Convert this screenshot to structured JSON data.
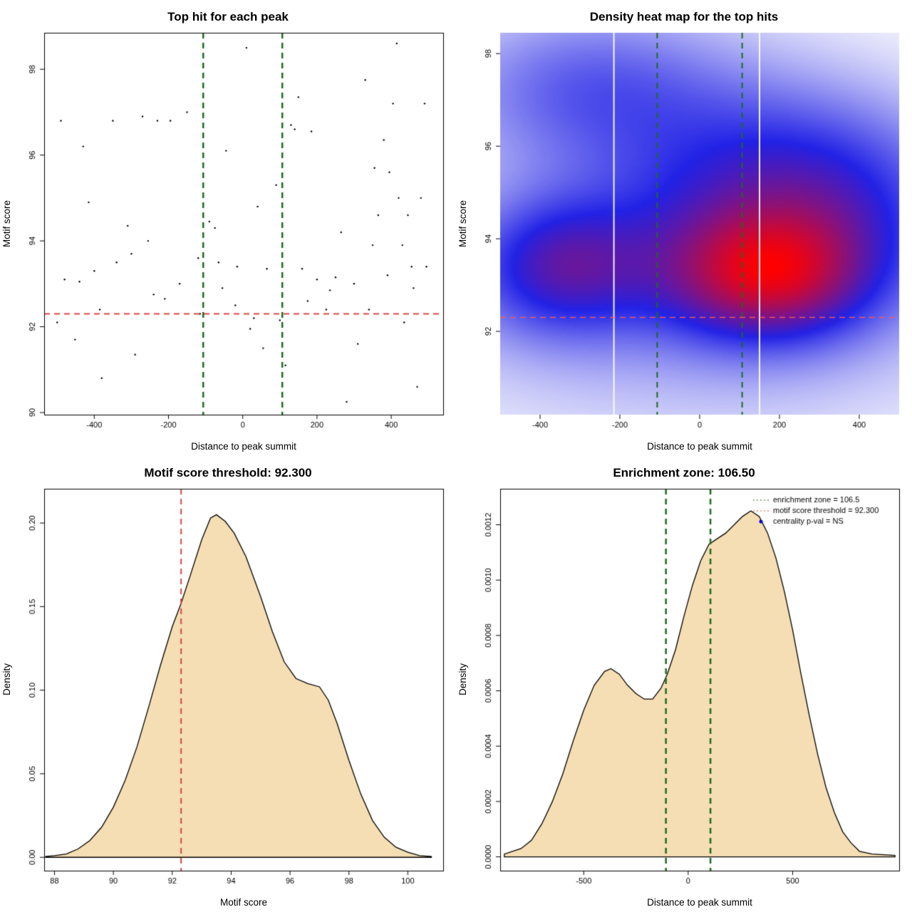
{
  "page": {
    "background": "#ffffff"
  },
  "colors": {
    "threshold_red": "#d94545",
    "zone_green": "#1e6b1e",
    "area_fill_wheat": "#f5deb3",
    "heat_high": "#ff0000",
    "heat_mid": "#2222e6",
    "legend_blue": "#0000cd"
  },
  "chart_data": [
    {
      "id": "scatter",
      "type": "scatter",
      "title": "Top hit for each peak",
      "xlabel": "Distance to peak summit",
      "ylabel": "Motif score",
      "xlim": [
        -535,
        540
      ],
      "ylim": [
        89.95,
        98.85
      ],
      "xticks": [
        -400,
        -200,
        0,
        200,
        400
      ],
      "xtick_labels": [
        "-400",
        "-200",
        "0",
        "200",
        "400"
      ],
      "yticks": [
        90,
        92,
        94,
        96,
        98
      ],
      "ytick_labels": [
        "90",
        "92",
        "94",
        "96",
        "98"
      ],
      "point_color": "#000000",
      "points": [
        [
          -490,
          96.8
        ],
        [
          -452,
          91.7
        ],
        [
          -440,
          93.05
        ],
        [
          -430,
          96.2
        ],
        [
          -480,
          93.1
        ],
        [
          -500,
          92.1
        ],
        [
          -415,
          94.9
        ],
        [
          -400,
          93.3
        ],
        [
          -385,
          92.4
        ],
        [
          -380,
          90.8
        ],
        [
          -350,
          96.8
        ],
        [
          -340,
          93.5
        ],
        [
          -310,
          94.35
        ],
        [
          -300,
          93.7
        ],
        [
          -290,
          91.35
        ],
        [
          -270,
          96.9
        ],
        [
          -255,
          94.0
        ],
        [
          -240,
          92.75
        ],
        [
          -230,
          96.8
        ],
        [
          -210,
          92.65
        ],
        [
          -195,
          96.8
        ],
        [
          -170,
          93.0
        ],
        [
          -150,
          97.0
        ],
        [
          -120,
          93.6
        ],
        [
          -115,
          92.3
        ],
        [
          -90,
          94.45
        ],
        [
          -75,
          94.3
        ],
        [
          -65,
          93.5
        ],
        [
          -55,
          92.9
        ],
        [
          -45,
          96.1
        ],
        [
          -20,
          92.5
        ],
        [
          -15,
          93.4
        ],
        [
          10,
          98.5
        ],
        [
          20,
          91.95
        ],
        [
          30,
          92.2
        ],
        [
          40,
          94.8
        ],
        [
          55,
          91.5
        ],
        [
          65,
          93.35
        ],
        [
          90,
          95.3
        ],
        [
          100,
          92.15
        ],
        [
          115,
          91.1
        ],
        [
          130,
          96.7
        ],
        [
          140,
          96.6
        ],
        [
          150,
          97.35
        ],
        [
          160,
          93.35
        ],
        [
          175,
          92.6
        ],
        [
          185,
          96.55
        ],
        [
          200,
          93.1
        ],
        [
          225,
          92.4
        ],
        [
          235,
          92.85
        ],
        [
          250,
          93.15
        ],
        [
          265,
          94.2
        ],
        [
          280,
          90.25
        ],
        [
          300,
          93.0
        ],
        [
          310,
          91.6
        ],
        [
          330,
          97.75
        ],
        [
          340,
          92.4
        ],
        [
          350,
          93.9
        ],
        [
          355,
          95.7
        ],
        [
          365,
          94.6
        ],
        [
          380,
          96.35
        ],
        [
          390,
          93.2
        ],
        [
          395,
          95.6
        ],
        [
          405,
          97.2
        ],
        [
          415,
          98.6
        ],
        [
          420,
          95.0
        ],
        [
          430,
          93.9
        ],
        [
          435,
          92.1
        ],
        [
          445,
          94.6
        ],
        [
          455,
          93.4
        ],
        [
          460,
          92.9
        ],
        [
          470,
          90.6
        ],
        [
          480,
          95.0
        ],
        [
          490,
          97.2
        ],
        [
          495,
          93.4
        ]
      ],
      "hline": {
        "value": 92.3,
        "color": "#d94545",
        "width": 2
      },
      "vlines": {
        "values": [
          -106.5,
          106.5
        ],
        "color": "#1e6b1e",
        "width": 2.5
      },
      "box": true
    },
    {
      "id": "heatmap",
      "type": "heatmap",
      "title": "Density heat map for the top hits",
      "xlabel": "Distance to peak summit",
      "ylabel": "Motif score",
      "xlim": [
        -500,
        500
      ],
      "ylim": [
        90.2,
        98.45
      ],
      "xticks": [
        -400,
        -200,
        0,
        200,
        400
      ],
      "xtick_labels": [
        "-400",
        "-200",
        "0",
        "200",
        "400"
      ],
      "yticks": [
        92,
        94,
        96,
        98
      ],
      "ytick_labels": [
        "92",
        "94",
        "96",
        "98"
      ],
      "colormap": {
        "low": "#ffffff",
        "mid": "#2222e6",
        "high": "#ff0000"
      },
      "kernels": [
        {
          "x": 170,
          "y": 93.2,
          "sx": 175,
          "sy": 0.95,
          "w": 1.0
        },
        {
          "x": -345,
          "y": 93.4,
          "sx": 155,
          "sy": 1.0,
          "w": 0.62
        },
        {
          "x": -280,
          "y": 97.3,
          "sx": 240,
          "sy": 1.15,
          "w": 0.4
        },
        {
          "x": 120,
          "y": 95.4,
          "sx": 260,
          "sy": 1.5,
          "w": 0.42
        },
        {
          "x": 360,
          "y": 94.8,
          "sx": 210,
          "sy": 1.35,
          "w": 0.33
        },
        {
          "x": 0,
          "y": 93.2,
          "sx": 470,
          "sy": 2.0,
          "w": 0.32
        }
      ],
      "white_lines_x": [
        -215,
        150
      ],
      "hline": {
        "value": 92.3,
        "color": "rgba(255,90,90,0.9)",
        "width": 1.6
      },
      "vlines": {
        "values": [
          -106.5,
          106.5
        ],
        "color": "#1e6b1e",
        "width": 2
      },
      "box": false
    },
    {
      "id": "score-density",
      "type": "area",
      "title": "Motif score threshold: 92.300",
      "xlabel": "Motif score",
      "ylabel": "Density",
      "xlim": [
        87.65,
        101.2
      ],
      "ylim": [
        -0.008,
        0.2205
      ],
      "xticks": [
        88,
        90,
        92,
        94,
        96,
        98,
        100
      ],
      "xtick_labels": [
        "88",
        "90",
        "92",
        "94",
        "96",
        "98",
        "100"
      ],
      "yticks": [
        0,
        0.05,
        0.1,
        0.15,
        0.2
      ],
      "ytick_labels": [
        "0.00",
        "0.05",
        "0.10",
        "0.15",
        "0.20"
      ],
      "fill": "#f5deb3",
      "stroke": "#000000",
      "curve": [
        [
          87.7,
          0.0005
        ],
        [
          88.0,
          0.001
        ],
        [
          88.4,
          0.002
        ],
        [
          88.8,
          0.005
        ],
        [
          89.2,
          0.01
        ],
        [
          89.6,
          0.018
        ],
        [
          90.0,
          0.03
        ],
        [
          90.4,
          0.046
        ],
        [
          90.8,
          0.066
        ],
        [
          91.2,
          0.09
        ],
        [
          91.6,
          0.115
        ],
        [
          92.0,
          0.138
        ],
        [
          92.3,
          0.152
        ],
        [
          92.6,
          0.168
        ],
        [
          93.0,
          0.19
        ],
        [
          93.3,
          0.203
        ],
        [
          93.5,
          0.205
        ],
        [
          93.8,
          0.201
        ],
        [
          94.1,
          0.194
        ],
        [
          94.5,
          0.18
        ],
        [
          95.0,
          0.156
        ],
        [
          95.4,
          0.135
        ],
        [
          95.8,
          0.117
        ],
        [
          96.2,
          0.107
        ],
        [
          96.6,
          0.104
        ],
        [
          97.0,
          0.102
        ],
        [
          97.3,
          0.094
        ],
        [
          97.6,
          0.08
        ],
        [
          98.0,
          0.058
        ],
        [
          98.4,
          0.038
        ],
        [
          98.8,
          0.022
        ],
        [
          99.2,
          0.012
        ],
        [
          99.6,
          0.006
        ],
        [
          100.0,
          0.003
        ],
        [
          100.4,
          0.001
        ],
        [
          100.8,
          0.0005
        ]
      ],
      "vlines": {
        "values": [
          92.3
        ],
        "color": "#d94545",
        "width": 2
      },
      "box": true
    },
    {
      "id": "position-density",
      "type": "area",
      "title": "Enrichment zone: 106.50",
      "xlabel": "Distance to peak summit",
      "ylabel": "Density",
      "xlim": [
        -900,
        1010
      ],
      "ylim": [
        -5e-05,
        0.00133
      ],
      "xticks": [
        -500,
        0,
        500
      ],
      "xtick_labels": [
        "-500",
        "0",
        "500"
      ],
      "yticks": [
        0,
        0.0002,
        0.0004,
        0.0006,
        0.0008,
        0.001,
        0.0012
      ],
      "ytick_labels": [
        "0.0000",
        "0.0002",
        "0.0004",
        "0.0006",
        "0.0008",
        "0.0010",
        "0.0012"
      ],
      "fill": "#f5deb3",
      "stroke": "#000000",
      "curve": [
        [
          -880,
          1e-05
        ],
        [
          -800,
          3e-05
        ],
        [
          -750,
          6e-05
        ],
        [
          -700,
          0.00012
        ],
        [
          -650,
          0.0002
        ],
        [
          -600,
          0.0003
        ],
        [
          -550,
          0.00042
        ],
        [
          -500,
          0.00053
        ],
        [
          -450,
          0.00062
        ],
        [
          -400,
          0.00067
        ],
        [
          -370,
          0.00068
        ],
        [
          -330,
          0.00066
        ],
        [
          -290,
          0.00062
        ],
        [
          -250,
          0.00059
        ],
        [
          -210,
          0.00057
        ],
        [
          -170,
          0.00057
        ],
        [
          -130,
          0.00061
        ],
        [
          -100,
          0.00066
        ],
        [
          -60,
          0.00075
        ],
        [
          -20,
          0.00087
        ],
        [
          20,
          0.00098
        ],
        [
          60,
          0.00107
        ],
        [
          100,
          0.00113
        ],
        [
          140,
          0.00115
        ],
        [
          180,
          0.00117
        ],
        [
          220,
          0.0012
        ],
        [
          260,
          0.00123
        ],
        [
          300,
          0.00125
        ],
        [
          340,
          0.00123
        ],
        [
          380,
          0.00117
        ],
        [
          420,
          0.00108
        ],
        [
          460,
          0.00096
        ],
        [
          500,
          0.00082
        ],
        [
          540,
          0.00066
        ],
        [
          580,
          0.00051
        ],
        [
          620,
          0.00037
        ],
        [
          660,
          0.00025
        ],
        [
          700,
          0.00016
        ],
        [
          740,
          9e-05
        ],
        [
          780,
          5e-05
        ],
        [
          820,
          2e-05
        ],
        [
          880,
          1e-05
        ],
        [
          990,
          5e-06
        ]
      ],
      "vlines": {
        "values": [
          -106.5,
          106.5
        ],
        "color": "#1e6b1e",
        "width": 2.5
      },
      "legend": [
        {
          "label": "enrichment zone = 106.5",
          "marker": "dotted-line",
          "color": "#1e6b1e"
        },
        {
          "label": "motif score threshold = 92.300",
          "marker": "dotted-line",
          "color": "#d94545"
        },
        {
          "label": "centrality p-val = NS",
          "marker": "point",
          "color": "#0000cd"
        }
      ],
      "box": true
    }
  ]
}
